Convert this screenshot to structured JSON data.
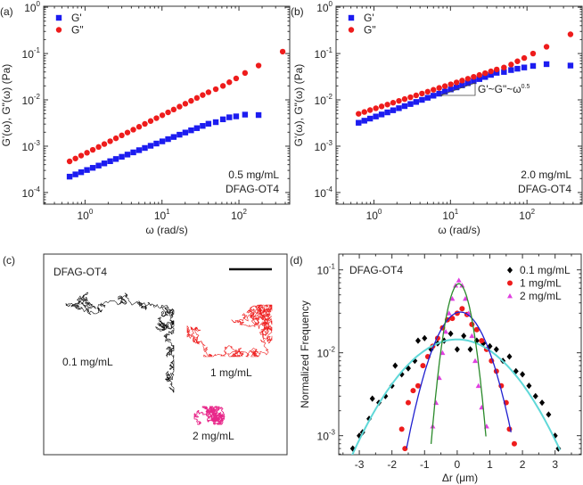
{
  "colors": {
    "gprime": "#1c1cf0",
    "gdouble": "#ee1c1c",
    "c01": "#000000",
    "c1": "#ee1c1c",
    "c2": "#e040e0",
    "fit01": "#5fd8d8",
    "fit1": "#2020d0",
    "fit2": "#2a8a2a",
    "traj01": "#111111",
    "traj1": "#ee1c1c",
    "traj2": "#e8288a"
  },
  "panels": {
    "a": "(a)",
    "b": "(b)",
    "c": "(c)",
    "d": "(d)"
  },
  "panel_c": {
    "title": "DFAG-OT4",
    "labels": [
      "0.1 mg/mL",
      "1 mg/mL",
      "2 mg/mL"
    ]
  },
  "chart_data": [
    {
      "id": "a",
      "type": "scatter",
      "xscale": "log",
      "yscale": "log",
      "xlabel": "ω (rad/s)",
      "ylabel": "G'(ω), G\"(ω) (Pa)",
      "xlim": [
        0.29,
        457
      ],
      "ylim": [
        5.6e-05,
        1.05
      ],
      "xticks": [
        {
          "base": "10",
          "exp": "0",
          "v": 1
        },
        {
          "base": "10",
          "exp": "1",
          "v": 10
        },
        {
          "base": "10",
          "exp": "2",
          "v": 100
        }
      ],
      "yticks": [
        {
          "base": "10",
          "exp": "0",
          "v": 1
        },
        {
          "base": "10",
          "exp": "-1",
          "v": 0.1
        },
        {
          "base": "10",
          "exp": "-2",
          "v": 0.01
        },
        {
          "base": "10",
          "exp": "-3",
          "v": 0.001
        },
        {
          "base": "10",
          "exp": "-4",
          "v": 0.0001
        }
      ],
      "annotation": [
        "0.5 mg/mL",
        "DFAG-OT4"
      ],
      "legend": "top-left",
      "x": [
        0.63,
        0.75,
        0.89,
        1.06,
        1.26,
        1.5,
        1.78,
        2.12,
        2.52,
        3.0,
        3.56,
        4.24,
        5.04,
        5.99,
        7.12,
        8.47,
        10.1,
        12.0,
        14.2,
        16.9,
        20.1,
        23.9,
        28.4,
        33.8,
        40.2,
        50,
        62,
        75,
        92,
        120,
        180,
        370
      ],
      "series": [
        {
          "name": "G'",
          "marker": "square",
          "values": [
            0.00022,
            0.000246,
            0.000274,
            0.000306,
            0.000341,
            0.000381,
            0.000425,
            0.000474,
            0.000529,
            0.00059,
            0.000659,
            0.000735,
            0.00082,
            0.000915,
            0.00102,
            0.00114,
            0.00127,
            0.00142,
            0.00158,
            0.00177,
            0.00197,
            0.0022,
            0.00245,
            0.00274,
            0.00305,
            0.0033,
            0.0038,
            0.0042,
            0.0044,
            0.0048,
            0.0047,
            null
          ]
        },
        {
          "name": "G\"",
          "marker": "circle",
          "values": [
            0.00047,
            0.000542,
            0.000626,
            0.000722,
            0.000834,
            0.000962,
            0.00111,
            0.00128,
            0.00148,
            0.00171,
            0.00197,
            0.00227,
            0.00262,
            0.00303,
            0.00349,
            0.00403,
            0.00465,
            0.00537,
            0.00619,
            0.00715,
            0.00825,
            0.00952,
            0.011,
            0.0127,
            0.0146,
            0.017,
            0.02,
            0.024,
            0.029,
            0.038,
            0.055,
            0.11
          ]
        }
      ]
    },
    {
      "id": "b",
      "type": "scatter",
      "xscale": "log",
      "yscale": "log",
      "xlabel": "ω (rad/s)",
      "ylabel": "G'(ω), G\"(ω) (Pa)",
      "xlim": [
        0.32,
        525
      ],
      "ylim": [
        5.6e-05,
        1.05
      ],
      "xticks": [
        {
          "base": "10",
          "exp": "0",
          "v": 1
        },
        {
          "base": "10",
          "exp": "1",
          "v": 10
        },
        {
          "base": "10",
          "exp": "2",
          "v": 100
        }
      ],
      "yticks": [
        {
          "base": "10",
          "exp": "0",
          "v": 1
        },
        {
          "base": "10",
          "exp": "-1",
          "v": 0.1
        },
        {
          "base": "10",
          "exp": "-2",
          "v": 0.01
        },
        {
          "base": "10",
          "exp": "-3",
          "v": 0.001
        },
        {
          "base": "10",
          "exp": "-4",
          "v": 0.0001
        }
      ],
      "annotation": [
        "2.0 mg/mL",
        "DFAG-OT4"
      ],
      "slope_label": {
        "text": "G'~G\"~ω",
        "exp": "0.5"
      },
      "legend": "top-left",
      "x": [
        0.63,
        0.75,
        0.89,
        1.06,
        1.26,
        1.5,
        1.78,
        2.12,
        2.52,
        3.0,
        3.56,
        4.24,
        5.04,
        5.99,
        7.12,
        8.47,
        10.1,
        12.0,
        14.2,
        16.9,
        20.1,
        23.9,
        28.4,
        33.8,
        40.2,
        50,
        62,
        75,
        92,
        120,
        180,
        370
      ],
      "series": [
        {
          "name": "G'",
          "marker": "square",
          "values": [
            0.0032,
            0.00355,
            0.00394,
            0.00437,
            0.00484,
            0.00537,
            0.00596,
            0.00661,
            0.00733,
            0.00813,
            0.00901,
            0.01,
            0.0111,
            0.0123,
            0.0136,
            0.0151,
            0.0168,
            0.0186,
            0.0206,
            0.0229,
            0.0254,
            0.0281,
            0.0312,
            0.0346,
            0.0384,
            0.04,
            0.044,
            0.047,
            0.05,
            0.054,
            0.059,
            0.055
          ]
        },
        {
          "name": "G\"",
          "marker": "circle",
          "values": [
            0.005,
            0.00548,
            0.00601,
            0.00658,
            0.00722,
            0.00791,
            0.00867,
            0.00951,
            0.0104,
            0.0114,
            0.0125,
            0.0137,
            0.015,
            0.0165,
            0.0181,
            0.0198,
            0.0217,
            0.0238,
            0.0261,
            0.0286,
            0.0314,
            0.0344,
            0.0377,
            0.0413,
            0.0453,
            0.05,
            0.058,
            0.068,
            0.08,
            0.1,
            0.14,
            0.26
          ]
        }
      ]
    },
    {
      "id": "d",
      "type": "scatter",
      "xscale": "linear",
      "yscale": "log",
      "xlabel": "Δr (μm)",
      "ylabel": "Normalized Frequency",
      "xlim": [
        -3.63,
        3.8
      ],
      "ylim": [
        0.00059,
        0.155
      ],
      "xticks": [
        {
          "label": "-3",
          "v": -3
        },
        {
          "label": "-2",
          "v": -2
        },
        {
          "label": "-1",
          "v": -1
        },
        {
          "label": "0",
          "v": 0
        },
        {
          "label": "1",
          "v": 1
        },
        {
          "label": "2",
          "v": 2
        },
        {
          "label": "3",
          "v": 3
        }
      ],
      "yticks": [
        {
          "base": "10",
          "exp": "-1",
          "v": 0.1
        },
        {
          "base": "10",
          "exp": "-2",
          "v": 0.01
        },
        {
          "base": "10",
          "exp": "-3",
          "v": 0.001
        }
      ],
      "annotation": [
        "DFAG-OT4"
      ],
      "legend": "top-right",
      "series": [
        {
          "name": "0.1 mg/mL",
          "marker": "diamond",
          "color_key": "c01",
          "x": [
            -3.2,
            -3.0,
            -2.9,
            -2.7,
            -2.6,
            -2.4,
            -2.2,
            -2.0,
            -1.9,
            -1.7,
            -1.5,
            -1.3,
            -1.2,
            -1.0,
            -0.8,
            -0.6,
            -0.4,
            -0.2,
            0.0,
            0.2,
            0.4,
            0.6,
            0.8,
            1.0,
            1.2,
            1.4,
            1.6,
            1.8,
            2.0,
            2.2,
            2.4,
            2.6,
            2.8,
            3.0,
            3.1
          ],
          "y": [
            0.0007,
            0.001,
            0.0011,
            0.0016,
            0.0028,
            0.0025,
            0.003,
            0.004,
            0.007,
            0.0055,
            0.0065,
            0.008,
            0.014,
            0.015,
            0.011,
            0.013,
            0.014,
            0.017,
            0.011,
            0.016,
            0.011,
            0.014,
            0.013,
            0.012,
            0.011,
            0.008,
            0.009,
            0.006,
            0.0055,
            0.004,
            0.003,
            0.0025,
            0.0018,
            0.001,
            0.0007
          ],
          "fit": {
            "type": "gaussian",
            "amplitude": 0.0145,
            "mean": 0.0,
            "sigma": 1.27,
            "range": [
              -3.3,
              3.15
            ],
            "color_key": "fit01"
          }
        },
        {
          "name": "1 mg/mL",
          "marker": "circle",
          "color_key": "c1",
          "x": [
            -1.7,
            -1.6,
            -1.5,
            -1.35,
            -1.2,
            -1.05,
            -0.9,
            -0.75,
            -0.6,
            -0.45,
            -0.3,
            -0.15,
            0.0,
            0.15,
            0.3,
            0.45,
            0.6,
            0.75,
            0.9,
            1.05,
            1.2,
            1.35,
            1.5,
            1.6,
            1.75
          ],
          "y": [
            0.0012,
            0.0007,
            0.0025,
            0.0035,
            0.004,
            0.007,
            0.009,
            0.012,
            0.015,
            0.02,
            0.025,
            0.026,
            0.03,
            0.034,
            0.029,
            0.022,
            0.019,
            0.014,
            0.011,
            0.008,
            0.006,
            0.004,
            0.0025,
            0.0012,
            0.0008
          ],
          "fit": {
            "type": "gaussian",
            "amplitude": 0.031,
            "mean": 0.1,
            "sigma": 0.6,
            "range": [
              -1.55,
              1.65
            ],
            "color_key": "fit1"
          }
        },
        {
          "name": "2 mg/mL",
          "marker": "triangle",
          "color_key": "c2",
          "x": [
            -0.75,
            -0.65,
            -0.55,
            -0.45,
            -0.35,
            -0.25,
            -0.15,
            -0.05,
            0.05,
            0.15,
            0.25,
            0.35,
            0.45,
            0.55,
            0.65,
            0.75,
            0.9
          ],
          "y": [
            0.0013,
            0.0025,
            0.005,
            0.01,
            0.018,
            0.03,
            0.045,
            0.065,
            0.075,
            0.065,
            0.045,
            0.03,
            0.016,
            0.008,
            0.004,
            0.0022,
            0.0013
          ],
          "fit": {
            "type": "gaussian",
            "amplitude": 0.068,
            "mean": 0.05,
            "sigma": 0.285,
            "range": [
              -0.8,
              0.88
            ],
            "color_key": "fit2"
          }
        }
      ]
    }
  ]
}
